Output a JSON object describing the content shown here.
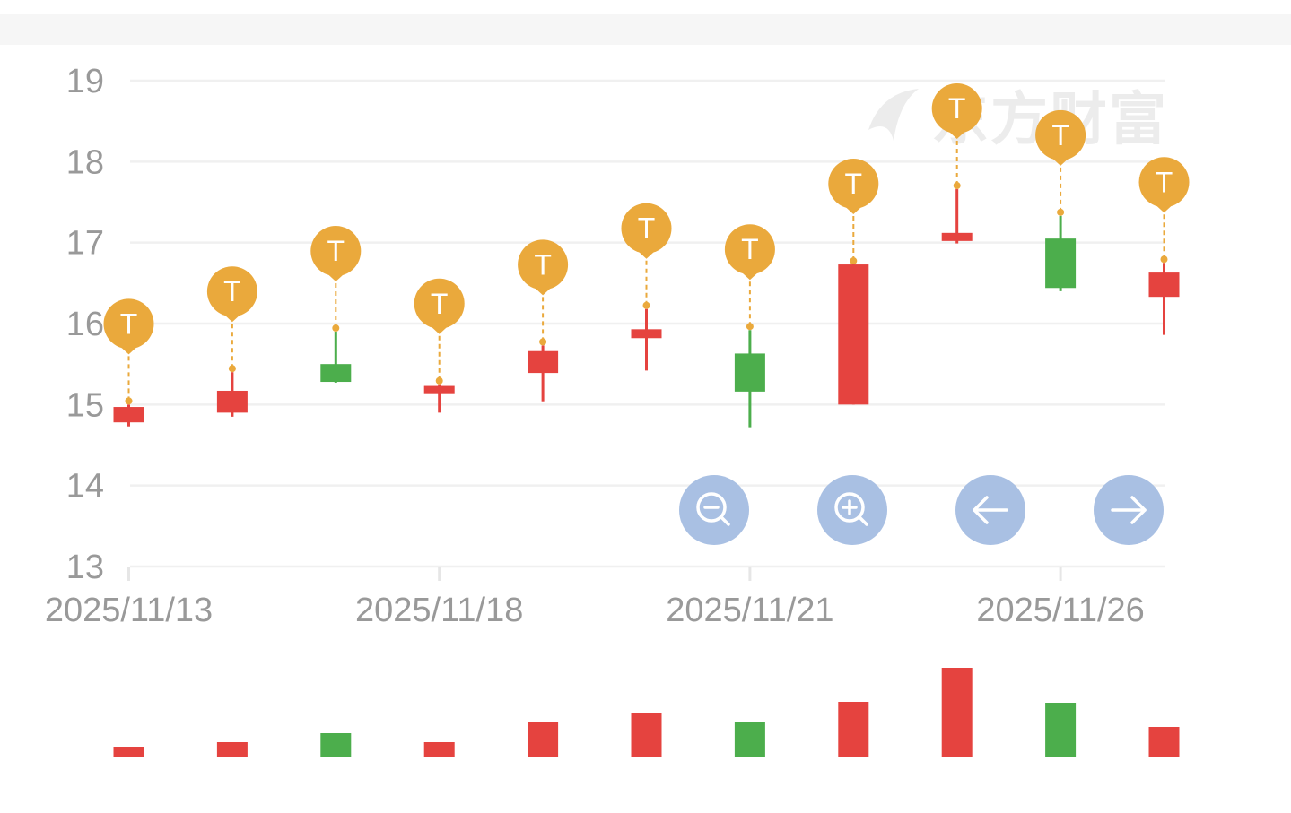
{
  "watermark": {
    "text": "东方财富"
  },
  "colors": {
    "up": "#e5433f",
    "down": "#4cae4c",
    "marker": "#eaa93c",
    "grid": "#f0f0f0",
    "axis_text": "#999999",
    "controls": "#a9c0e3"
  },
  "controls": [
    {
      "name": "zoom-out-button",
      "icon": "zoom-out-icon"
    },
    {
      "name": "zoom-in-button",
      "icon": "zoom-in-icon"
    },
    {
      "name": "scroll-left-button",
      "icon": "arrow-left-icon"
    },
    {
      "name": "scroll-right-button",
      "icon": "arrow-right-icon"
    }
  ],
  "chart_data": {
    "type": "candlestick",
    "ylim": [
      13,
      19
    ],
    "yticks": [
      "13",
      "14",
      "15",
      "16",
      "17",
      "18",
      "19"
    ],
    "xtick_labels": [
      "2025/11/13",
      "2025/11/18",
      "2025/11/21",
      "2025/11/26"
    ],
    "xtick_indices": [
      0,
      3,
      6,
      9
    ],
    "marker_label": "T",
    "candles": [
      {
        "open": 14.97,
        "close": 14.78,
        "high": 15.0,
        "low": 14.73,
        "dir": "up",
        "volume": 12
      },
      {
        "open": 15.17,
        "close": 14.9,
        "high": 15.4,
        "low": 14.85,
        "dir": "up",
        "volume": 17
      },
      {
        "open": 15.28,
        "close": 15.5,
        "high": 15.9,
        "low": 15.27,
        "dir": "down",
        "volume": 27
      },
      {
        "open": 15.23,
        "close": 15.14,
        "high": 15.25,
        "low": 14.9,
        "dir": "up",
        "volume": 17
      },
      {
        "open": 15.66,
        "close": 15.39,
        "high": 15.73,
        "low": 15.04,
        "dir": "up",
        "volume": 39
      },
      {
        "open": 15.93,
        "close": 15.82,
        "high": 16.18,
        "low": 15.42,
        "dir": "up",
        "volume": 50
      },
      {
        "open": 15.16,
        "close": 15.63,
        "high": 15.92,
        "low": 14.72,
        "dir": "down",
        "volume": 39
      },
      {
        "open": 16.73,
        "close": 15.0,
        "high": 16.73,
        "low": 15.0,
        "dir": "up",
        "volume": 62
      },
      {
        "open": 17.12,
        "close": 17.02,
        "high": 17.66,
        "low": 16.99,
        "dir": "up",
        "volume": 100
      },
      {
        "open": 16.44,
        "close": 17.05,
        "high": 17.33,
        "low": 16.4,
        "dir": "down",
        "volume": 61
      },
      {
        "open": 16.63,
        "close": 16.33,
        "high": 16.75,
        "low": 15.86,
        "dir": "up",
        "volume": 34
      }
    ]
  }
}
